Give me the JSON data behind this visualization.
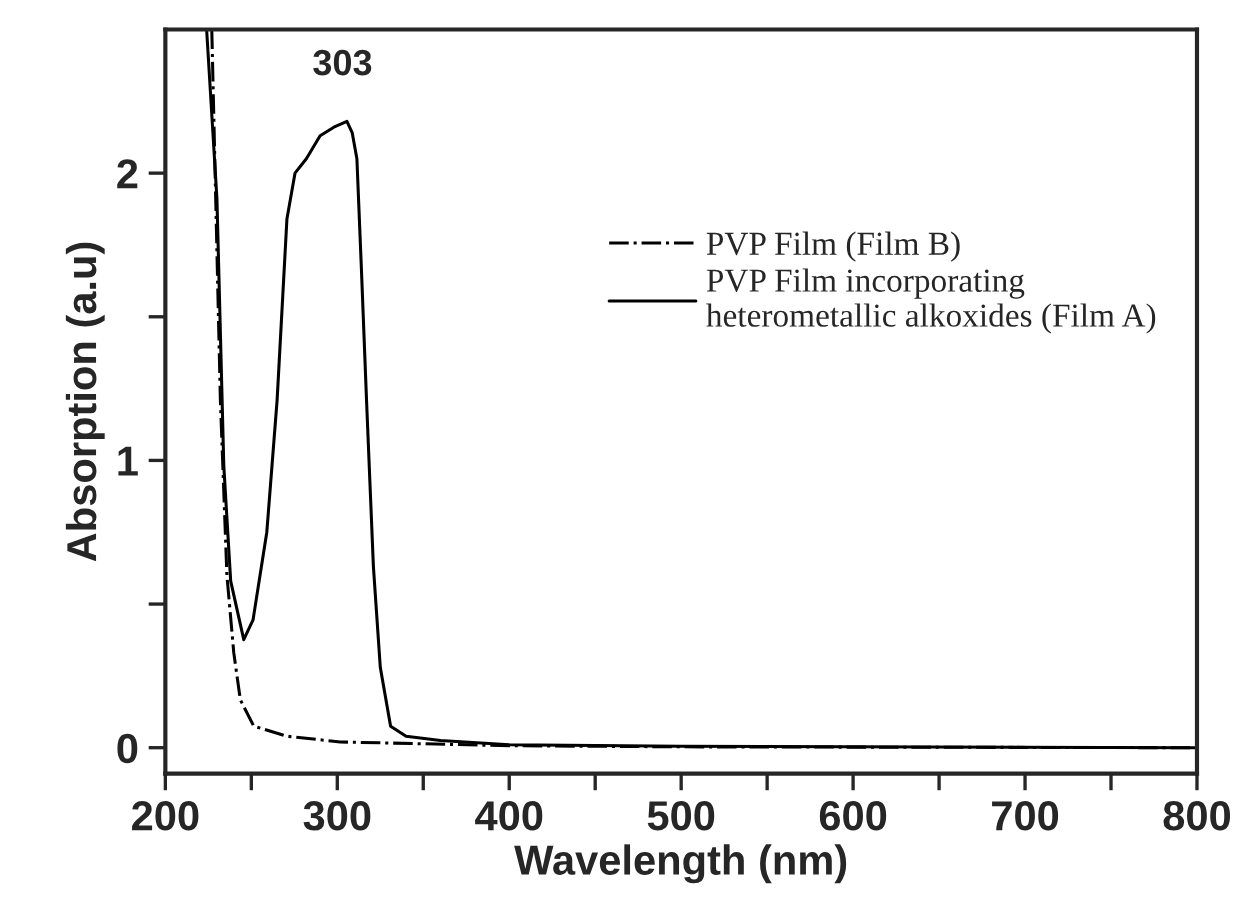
{
  "chart_data": {
    "type": "line",
    "xlabel": "Wavelength (nm)",
    "ylabel": "Absorption (a.u)",
    "xlim": [
      200,
      800
    ],
    "ylim": [
      -0.09,
      2.5
    ],
    "xticks": [
      200,
      {
        "value": 250,
        "label": null
      },
      300,
      {
        "value": 350,
        "label": null
      },
      400,
      {
        "value": 450,
        "label": null
      },
      500,
      {
        "value": 550,
        "label": null
      },
      600,
      {
        "value": 650,
        "label": null
      },
      700,
      {
        "value": 750,
        "label": null
      },
      800
    ],
    "yticks": [
      0,
      {
        "value": 0.5,
        "label": null
      },
      1,
      {
        "value": 1.5,
        "label": null
      },
      2
    ],
    "grid": false,
    "legend": "right",
    "marker": "none",
    "annotations": [
      {
        "text": "303",
        "x": 303,
        "y": 2.18
      }
    ],
    "series": [
      {
        "name": "PVP Film (Film B)",
        "color": "#000000",
        "line_style": "dashdot",
        "x": [
          227,
          232,
          235.8,
          239.8,
          243.6,
          251.4,
          270.7,
          301.7,
          400,
          500,
          800
        ],
        "values": [
          2.5,
          1.21,
          0.6,
          0.33,
          0.167,
          0.075,
          0.04,
          0.02,
          0.007,
          0.003,
          0
        ]
      },
      {
        "name": "PVP Film incorporating\nheterometallic alkoxides (Film A)",
        "color": "#000000",
        "line_style": "solid",
        "x": [
          224,
          230,
          234,
          238,
          245.6,
          251,
          259,
          265,
          270.7,
          275.4,
          282,
          290,
          298,
          305.6,
          308.7,
          311.4,
          314,
          317,
          321,
          325,
          331,
          340,
          360,
          400,
          500,
          800
        ],
        "values": [
          2.5,
          1.91,
          0.98,
          0.58,
          0.376,
          0.445,
          0.75,
          1.21,
          1.84,
          2.0,
          2.05,
          2.13,
          2.16,
          2.18,
          2.14,
          2.05,
          1.67,
          1.21,
          0.63,
          0.28,
          0.075,
          0.04,
          0.025,
          0.01,
          0.005,
          0
        ]
      }
    ]
  }
}
